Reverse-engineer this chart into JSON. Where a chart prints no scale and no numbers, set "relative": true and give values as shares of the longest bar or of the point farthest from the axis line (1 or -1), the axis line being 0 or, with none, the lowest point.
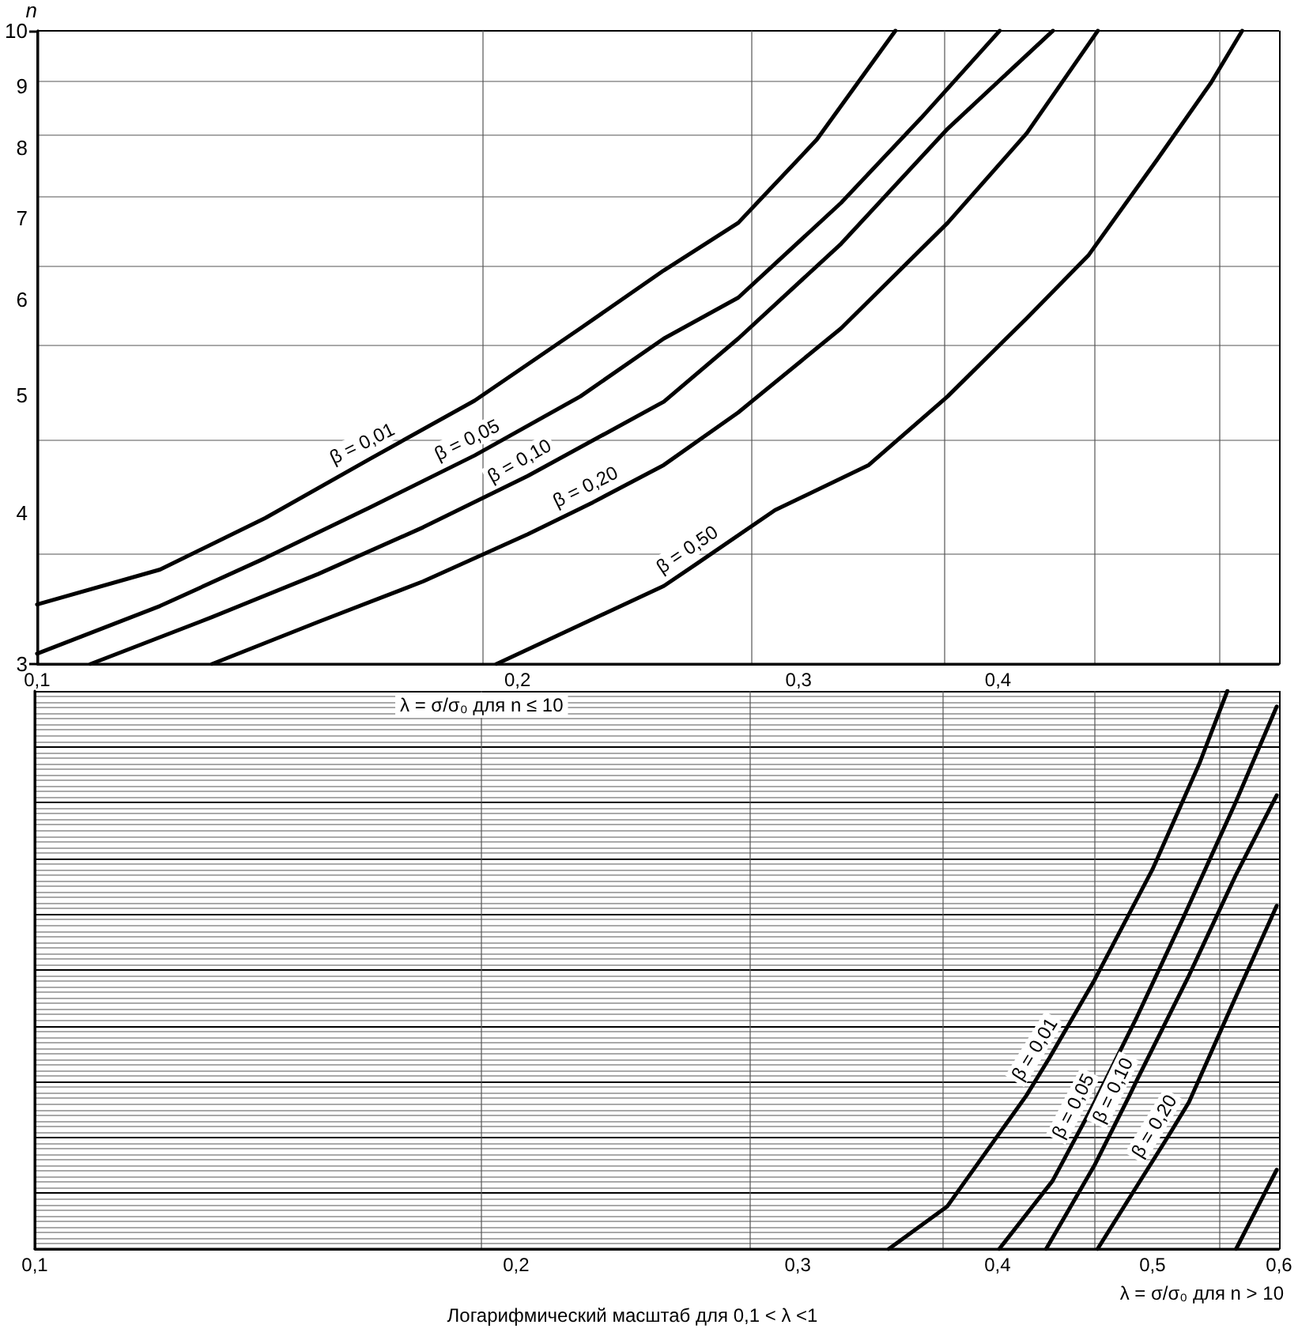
{
  "chart_data": [
    {
      "type": "line",
      "ylabel": "n",
      "xlabel": "λ = σ/σ₀ для n ≤ 10",
      "log": "xy",
      "xlim": [
        0.1,
        0.6
      ],
      "ylim": [
        3,
        10
      ],
      "xticks": [
        {
          "value": 0.1,
          "label": "0,1"
        },
        {
          "value": 0.2,
          "label": "0,2"
        },
        {
          "value": 0.3,
          "label": "0,3"
        },
        {
          "value": 0.4,
          "label": "0,4"
        }
      ],
      "yticks": [
        3,
        4,
        5,
        6,
        7,
        8,
        9,
        10
      ],
      "grid": true,
      "marker": "none",
      "line_style": "solid",
      "annotations": [
        {
          "text": "β = 0,01",
          "x": 0.1616,
          "y": 4.43
        },
        {
          "text": "β = 0,05",
          "x": 0.188,
          "y": 4.46
        },
        {
          "text": "β = 0,10",
          "x": 0.203,
          "y": 4.29
        },
        {
          "text": "β = 0,20",
          "x": 0.223,
          "y": 4.08
        },
        {
          "text": "β = 0,50",
          "x": 0.259,
          "y": 3.63
        }
      ],
      "series": [
        {
          "color": "#000000",
          "x": [
            0.1,
            0.1194,
            0.139,
            0.1616,
            0.188,
            0.219,
            0.247,
            0.275,
            0.308,
            0.345
          ],
          "values": [
            3.36,
            3.59,
            3.96,
            4.43,
            4.95,
            5.68,
            6.34,
            6.94,
            8.13,
            10
          ]
        },
        {
          "color": "#000000",
          "x": [
            0.1,
            0.1194,
            0.139,
            0.1616,
            0.188,
            0.219,
            0.247,
            0.275,
            0.319,
            0.358,
            0.401
          ],
          "values": [
            3.06,
            3.35,
            3.67,
            4.04,
            4.46,
            4.99,
            5.57,
            6.02,
            7.21,
            8.47,
            10
          ]
        },
        {
          "color": "#000000",
          "x": [
            0.108,
            0.1287,
            0.15,
            0.1745,
            0.203,
            0.247,
            0.275,
            0.319,
            0.372,
            0.433
          ],
          "values": [
            3,
            3.28,
            3.56,
            3.89,
            4.29,
            4.94,
            5.57,
            6.67,
            8.3,
            10
          ]
        },
        {
          "color": "#000000",
          "x": [
            0.1287,
            0.15,
            0.1745,
            0.203,
            0.223,
            0.247,
            0.275,
            0.319,
            0.372,
            0.417,
            0.462
          ],
          "values": [
            3,
            3.25,
            3.51,
            3.84,
            4.08,
            4.38,
            4.84,
            5.68,
            6.94,
            8.23,
            10
          ]
        },
        {
          "color": "#000000",
          "x": [
            0.194,
            0.247,
            0.259,
            0.29,
            0.332,
            0.372,
            0.417,
            0.456,
            0.503,
            0.544,
            0.569
          ],
          "values": [
            3,
            3.48,
            3.63,
            4.02,
            4.38,
            4.99,
            5.79,
            6.53,
            7.82,
            9.06,
            10
          ]
        }
      ]
    },
    {
      "type": "line",
      "relative": true,
      "xlabel": "λ = σ/σ₀ для n > 10",
      "log": "x",
      "xlim": [
        0.1,
        0.6
      ],
      "xticks": [
        {
          "value": 0.1,
          "label": "0,1"
        },
        {
          "value": 0.2,
          "label": "0,2"
        },
        {
          "value": 0.3,
          "label": "0,3"
        },
        {
          "value": 0.4,
          "label": "0,4"
        },
        {
          "value": 0.5,
          "label": "0,5"
        },
        {
          "value": 0.6,
          "label": "0,6"
        }
      ],
      "grid": true,
      "tick_labels": "x",
      "marker": "none",
      "line_style": "solid",
      "annotations": [
        "Логарифмический масштаб для 0,1 < λ <1",
        {
          "text": "β = 0,01",
          "x": 0.431,
          "y": 0.342
        },
        {
          "text": "β = 0,05",
          "x": 0.456,
          "y": 0.242
        },
        {
          "text": "β = 0,10",
          "x": 0.483,
          "y": 0.271
        },
        {
          "text": "β = 0,20",
          "x": 0.512,
          "y": 0.204
        }
      ],
      "series": [
        {
          "color": "#000000",
          "x": [
            0.342,
            0.372,
            0.417,
            0.431,
            0.46,
            0.5,
            0.535,
            0.557
          ],
          "values": [
            0,
            0.076,
            0.275,
            0.342,
            0.482,
            0.68,
            0.87,
            1
          ]
        },
        {
          "color": "#000000",
          "x": [
            0.401,
            0.433,
            0.456,
            0.46,
            0.489,
            0.523,
            0.564,
            0.598
          ],
          "values": [
            0,
            0.122,
            0.242,
            0.263,
            0.416,
            0.595,
            0.802,
            0.972
          ]
        },
        {
          "color": "#000000",
          "x": [
            0.429,
            0.46,
            0.483,
            0.489,
            0.527,
            0.564,
            0.598
          ],
          "values": [
            0,
            0.15,
            0.271,
            0.303,
            0.49,
            0.671,
            0.813
          ]
        },
        {
          "color": "#000000",
          "x": [
            0.462,
            0.489,
            0.512,
            0.527,
            0.564,
            0.598
          ],
          "values": [
            0,
            0.113,
            0.204,
            0.263,
            0.453,
            0.615
          ]
        },
        {
          "color": "#000000",
          "x": [
            0.564,
            0.598
          ],
          "values": [
            0,
            0.142
          ]
        }
      ]
    }
  ]
}
